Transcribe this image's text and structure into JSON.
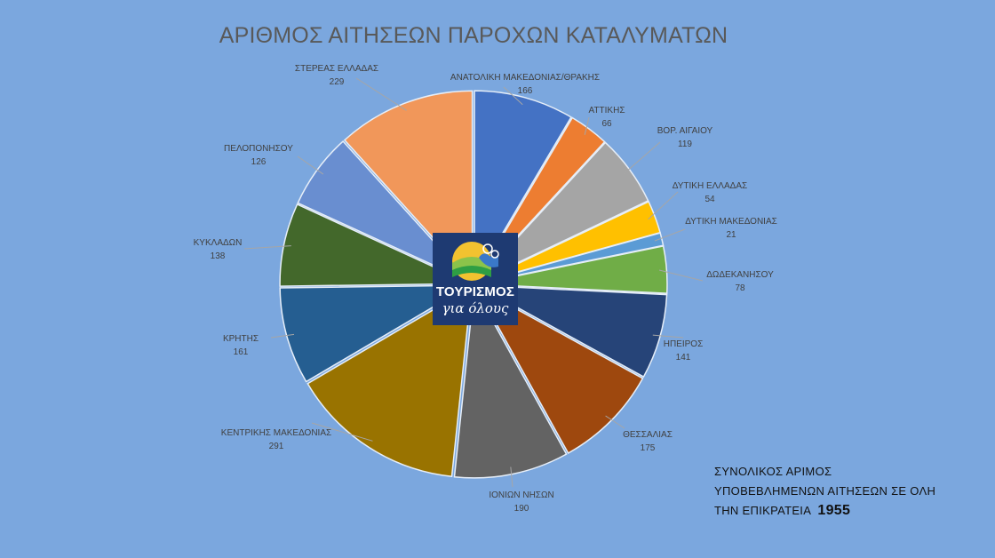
{
  "chart_data": {
    "type": "pie",
    "title": "ΑΡΙΘΜΟΣ ΑΙΤΗΣΕΩΝ ΠΑΡΟΧΩΝ ΚΑΤΑΛΥΜΑΤΩΝ",
    "slices": [
      {
        "label": "ΑΝΑΤΟΛΙΚΗ ΜΑΚΕΔΟΝΙΑΣ/ΘΡΑΚΗΣ",
        "value": 166,
        "color": "#4472C4"
      },
      {
        "label": "ΑΤΤΙΚΗΣ",
        "value": 66,
        "color": "#ED7D31"
      },
      {
        "label": "ΒΟΡ. ΑΙΓΑΙΟΥ",
        "value": 119,
        "color": "#A5A5A5"
      },
      {
        "label": "ΔΥΤΙΚΗ ΕΛΛΑΔΑΣ",
        "value": 54,
        "color": "#FFC000"
      },
      {
        "label": "ΔΥΤΙΚΗ ΜΑΚΕΔΟΝΙΑΣ",
        "value": 21,
        "color": "#5B9BD5"
      },
      {
        "label": "ΔΩΔΕΚΑΝΗΣΟΥ",
        "value": 78,
        "color": "#70AD47"
      },
      {
        "label": "ΗΠΕΙΡΟΣ",
        "value": 141,
        "color": "#264478"
      },
      {
        "label": "ΘΕΣΣΑΛΙΑΣ",
        "value": 175,
        "color": "#9E480E"
      },
      {
        "label": "ΙΟΝΙΩΝ ΝΗΣΩΝ",
        "value": 190,
        "color": "#636363"
      },
      {
        "label": "ΚΕΝΤΡΙΚΗΣ ΜΑΚΕΔΟΝΙΑΣ",
        "value": 291,
        "color": "#997300"
      },
      {
        "label": "ΚΡΗΤΗΣ",
        "value": 161,
        "color": "#255E91"
      },
      {
        "label": "ΚΥΚΛΑΔΩΝ",
        "value": 138,
        "color": "#43682B"
      },
      {
        "label": "ΠΕΛΟΠΟΝΗΣΟΥ",
        "value": 126,
        "color": "#698ED0"
      },
      {
        "label": "ΣΤΕΡΕΑΣ ΕΛΛΑΔΑΣ",
        "value": 229,
        "color": "#F1975A"
      }
    ],
    "label_position": "outside-with-leader-lines",
    "legend": "none"
  },
  "total_note": {
    "line1": "ΣΥΝΟΛΙΚΟΣ ΑΡΙΜΟΣ",
    "line2": "ΥΠΟΒΕΒΛΗΜΕΝΩΝ ΑΙΤΗΣΕΩΝ ΣΕ ΟΛΗ",
    "line3": "ΤΗΝ ΕΠΙΚΡΑΤΕΙΑ",
    "value": "1955"
  },
  "logo": {
    "word": "ΤΟΥΡΙΣΜΟΣ",
    "sub": "για όλους"
  },
  "colors": {
    "background": "#7BA7DE",
    "title": "#595959",
    "logo_bg": "#1E3A72"
  }
}
